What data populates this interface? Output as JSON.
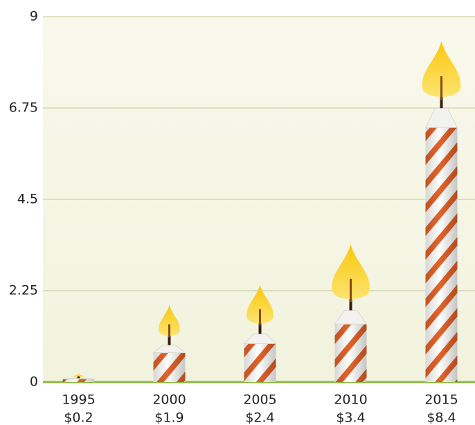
{
  "chart_data": {
    "type": "candle",
    "categories": [
      "1995",
      "2000",
      "2005",
      "2010",
      "2015"
    ],
    "values": [
      0.2,
      1.9,
      2.4,
      3.4,
      8.4
    ],
    "value_labels": [
      "$0.2",
      "$1.9",
      "$2.4",
      "$3.4",
      "$8.4"
    ],
    "color": "#e3622a",
    "ylim": [
      0,
      9
    ],
    "yticks": [
      0,
      2.25,
      4.5,
      6.75,
      9
    ],
    "grid": true
  }
}
